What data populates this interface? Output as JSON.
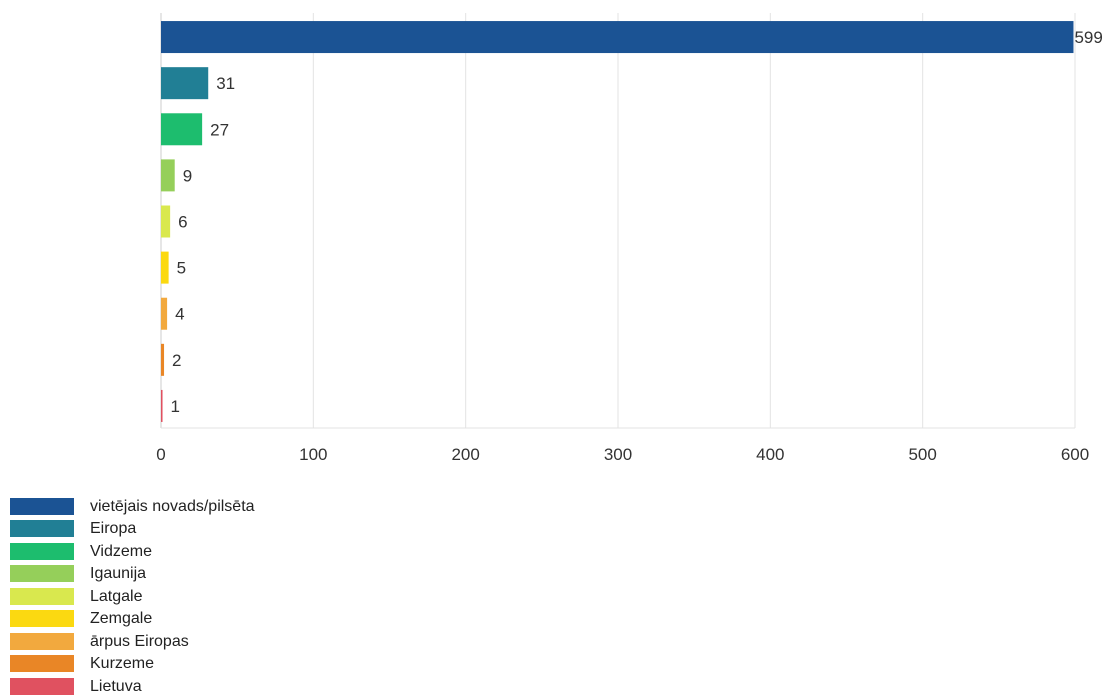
{
  "chart_data": {
    "type": "bar",
    "orientation": "horizontal",
    "categories": [
      "vietējais novads/pilsēta",
      "Eiropa",
      "Vidzeme",
      "Igaunija",
      "Latgale",
      "Zemgale",
      "ārpus Eiropas",
      "Kurzeme",
      "Lietuva"
    ],
    "values": [
      599,
      31,
      27,
      9,
      6,
      5,
      4,
      2,
      1
    ],
    "colors": [
      "#1b5394",
      "#217f95",
      "#1dbd6e",
      "#95cf5a",
      "#d9e84e",
      "#fbd911",
      "#f2a93e",
      "#e98626",
      "#e05160"
    ],
    "xlim": [
      0,
      600
    ],
    "x_ticks": [
      0,
      100,
      200,
      300,
      400,
      500,
      600
    ],
    "grid": true,
    "legend_position": "bottom-left",
    "title": "",
    "xlabel": "",
    "ylabel": ""
  }
}
